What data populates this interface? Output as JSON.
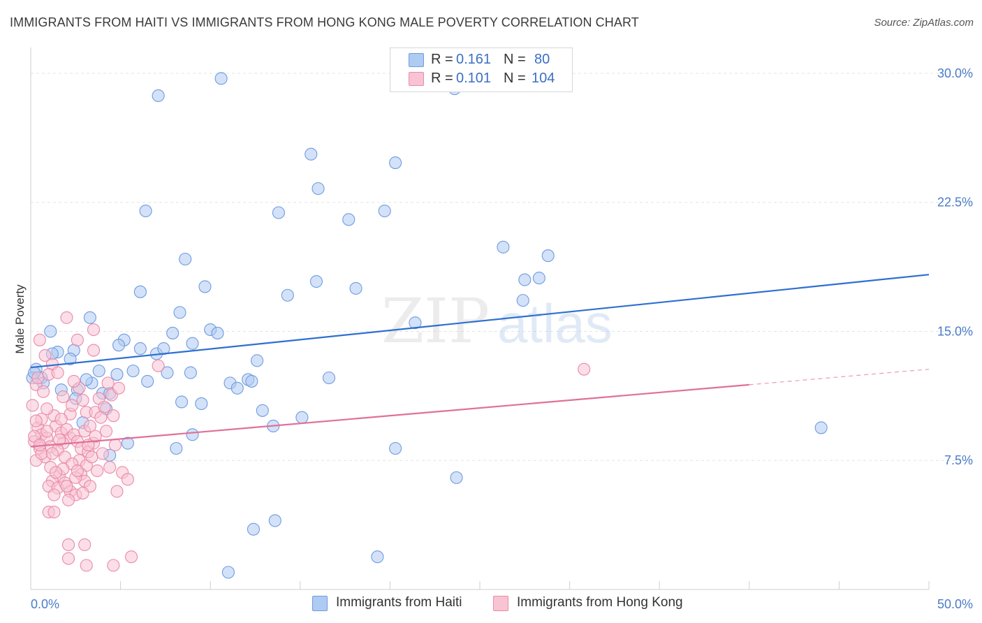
{
  "title": "IMMIGRANTS FROM HAITI VS IMMIGRANTS FROM HONG KONG MALE POVERTY CORRELATION CHART",
  "source": "Source: ZipAtlas.com",
  "watermark": {
    "zip": "ZIP",
    "atlas": "atlas"
  },
  "legend": {
    "r_label": "R =",
    "n_label": "N =",
    "rows": [
      {
        "r": "0.161",
        "n": "80",
        "fill": "#aecbf2",
        "stroke": "#6f9be0"
      },
      {
        "r": "0.101",
        "n": "104",
        "fill": "#f8c3d3",
        "stroke": "#ea8aa8"
      }
    ]
  },
  "bottom_legend": [
    "Immigrants from Haiti",
    "Immigrants from Hong Kong"
  ],
  "chart_data": {
    "type": "scatter",
    "title": "IMMIGRANTS FROM HAITI VS IMMIGRANTS FROM HONG KONG MALE POVERTY CORRELATION CHART",
    "xlabel": "",
    "ylabel": "Male Poverty",
    "xlim": [
      0,
      50
    ],
    "ylim": [
      0,
      31.5
    ],
    "x_tick_labels": [
      "0.0%",
      "50.0%"
    ],
    "y_ticks": [
      7.5,
      15.0,
      22.5,
      30.0
    ],
    "y_tick_labels": [
      "7.5%",
      "15.0%",
      "22.5%",
      "30.0%"
    ],
    "grid": true,
    "series": [
      {
        "name": "Immigrants from Haiti",
        "color": "#6f9be0",
        "fill": "#aecbf2",
        "trend": {
          "x0": 0,
          "y0": 12.9,
          "x1": 50,
          "y1": 18.3,
          "color": "#2f6fd0"
        },
        "points": [
          [
            10.6,
            29.7
          ],
          [
            7.1,
            28.7
          ],
          [
            20.3,
            24.8
          ],
          [
            15.6,
            25.3
          ],
          [
            23.6,
            29.1
          ],
          [
            16.0,
            23.3
          ],
          [
            6.4,
            22.0
          ],
          [
            13.8,
            21.9
          ],
          [
            17.7,
            21.5
          ],
          [
            19.7,
            22.0
          ],
          [
            8.6,
            19.2
          ],
          [
            26.3,
            19.9
          ],
          [
            28.8,
            19.4
          ],
          [
            9.7,
            17.6
          ],
          [
            6.1,
            17.3
          ],
          [
            14.3,
            17.1
          ],
          [
            15.9,
            17.9
          ],
          [
            18.1,
            17.5
          ],
          [
            27.5,
            18.0
          ],
          [
            28.3,
            18.1
          ],
          [
            27.4,
            16.8
          ],
          [
            8.3,
            16.1
          ],
          [
            21.4,
            15.5
          ],
          [
            3.3,
            15.8
          ],
          [
            10.0,
            15.1
          ],
          [
            10.4,
            14.9
          ],
          [
            1.1,
            15.0
          ],
          [
            5.2,
            14.5
          ],
          [
            7.9,
            14.9
          ],
          [
            9.0,
            14.3
          ],
          [
            4.9,
            14.2
          ],
          [
            1.5,
            13.8
          ],
          [
            2.4,
            13.9
          ],
          [
            6.1,
            14.0
          ],
          [
            7.0,
            13.7
          ],
          [
            7.4,
            14.0
          ],
          [
            2.2,
            13.4
          ],
          [
            12.6,
            13.3
          ],
          [
            0.3,
            12.8
          ],
          [
            3.8,
            12.7
          ],
          [
            4.8,
            12.5
          ],
          [
            5.7,
            12.7
          ],
          [
            7.6,
            12.6
          ],
          [
            8.9,
            12.6
          ],
          [
            0.6,
            12.3
          ],
          [
            6.5,
            12.1
          ],
          [
            11.1,
            12.0
          ],
          [
            12.1,
            12.2
          ],
          [
            12.3,
            12.1
          ],
          [
            16.6,
            12.3
          ],
          [
            0.7,
            12.0
          ],
          [
            0.1,
            12.3
          ],
          [
            3.4,
            12.0
          ],
          [
            11.5,
            11.7
          ],
          [
            1.7,
            11.6
          ],
          [
            2.6,
            11.6
          ],
          [
            4.0,
            11.4
          ],
          [
            2.5,
            11.1
          ],
          [
            4.4,
            11.4
          ],
          [
            9.5,
            10.8
          ],
          [
            12.9,
            10.4
          ],
          [
            4.2,
            10.5
          ],
          [
            15.1,
            10.0
          ],
          [
            2.9,
            9.7
          ],
          [
            13.5,
            9.5
          ],
          [
            44.0,
            9.4
          ],
          [
            9.0,
            9.0
          ],
          [
            5.4,
            8.5
          ],
          [
            8.1,
            8.2
          ],
          [
            20.3,
            8.2
          ],
          [
            4.4,
            7.8
          ],
          [
            23.7,
            6.5
          ],
          [
            13.6,
            4.0
          ],
          [
            12.4,
            3.5
          ],
          [
            19.3,
            1.9
          ],
          [
            11.0,
            1.0
          ],
          [
            0.2,
            12.6
          ],
          [
            1.2,
            13.7
          ],
          [
            3.1,
            12.2
          ],
          [
            8.4,
            10.9
          ]
        ]
      },
      {
        "name": "Immigrants from Hong Kong",
        "color": "#ea8aa8",
        "fill": "#f8c3d3",
        "trend": {
          "x0": 0,
          "y0": 8.3,
          "x1": 40,
          "y1": 11.9,
          "x_dash_end": 50,
          "y_dash_end": 12.8,
          "color": "#e0709a"
        },
        "points": [
          [
            0.5,
            14.5
          ],
          [
            1.2,
            13.1
          ],
          [
            1.0,
            12.5
          ],
          [
            0.3,
            11.9
          ],
          [
            0.1,
            10.7
          ],
          [
            0.4,
            9.4
          ],
          [
            0.6,
            9.0
          ],
          [
            0.9,
            8.8
          ],
          [
            1.1,
            8.3
          ],
          [
            0.2,
            8.6
          ],
          [
            0.5,
            8.2
          ],
          [
            0.8,
            7.7
          ],
          [
            0.3,
            7.5
          ],
          [
            1.4,
            9.5
          ],
          [
            1.7,
            9.1
          ],
          [
            2.0,
            9.3
          ],
          [
            2.2,
            8.8
          ],
          [
            1.8,
            8.5
          ],
          [
            1.5,
            8.1
          ],
          [
            1.9,
            7.7
          ],
          [
            2.4,
            9.0
          ],
          [
            2.6,
            8.6
          ],
          [
            2.8,
            8.2
          ],
          [
            3.0,
            9.2
          ],
          [
            3.2,
            8.0
          ],
          [
            2.7,
            7.5
          ],
          [
            3.1,
            7.2
          ],
          [
            3.5,
            8.5
          ],
          [
            3.4,
            7.7
          ],
          [
            2.3,
            7.3
          ],
          [
            1.6,
            6.6
          ],
          [
            1.2,
            6.3
          ],
          [
            1.0,
            6.0
          ],
          [
            1.5,
            5.9
          ],
          [
            1.9,
            6.2
          ],
          [
            2.2,
            5.7
          ],
          [
            2.5,
            5.5
          ],
          [
            2.1,
            5.2
          ],
          [
            1.3,
            5.5
          ],
          [
            2.8,
            6.7
          ],
          [
            3.0,
            6.3
          ],
          [
            3.3,
            6.0
          ],
          [
            1.8,
            11.2
          ],
          [
            2.2,
            10.2
          ],
          [
            2.7,
            11.7
          ],
          [
            3.1,
            10.3
          ],
          [
            3.6,
            10.3
          ],
          [
            3.8,
            11.1
          ],
          [
            4.1,
            10.6
          ],
          [
            4.5,
            11.3
          ],
          [
            4.9,
            11.7
          ],
          [
            2.0,
            15.8
          ],
          [
            2.6,
            14.5
          ],
          [
            3.5,
            13.9
          ],
          [
            3.5,
            15.1
          ],
          [
            7.1,
            13.0
          ],
          [
            4.2,
            9.2
          ],
          [
            4.7,
            8.4
          ],
          [
            4.4,
            7.1
          ],
          [
            5.1,
            6.8
          ],
          [
            5.4,
            6.4
          ],
          [
            4.8,
            5.7
          ],
          [
            1.0,
            4.5
          ],
          [
            1.3,
            4.5
          ],
          [
            2.1,
            2.6
          ],
          [
            3.0,
            2.6
          ],
          [
            2.1,
            1.8
          ],
          [
            3.1,
            1.4
          ],
          [
            4.6,
            1.4
          ],
          [
            5.6,
            1.9
          ],
          [
            30.8,
            12.8
          ],
          [
            0.4,
            12.3
          ],
          [
            0.7,
            11.5
          ],
          [
            0.6,
            9.9
          ],
          [
            1.3,
            10.1
          ],
          [
            0.9,
            9.2
          ],
          [
            1.6,
            8.7
          ],
          [
            0.2,
            8.9
          ],
          [
            2.9,
            11.0
          ],
          [
            4.3,
            12.0
          ],
          [
            0.8,
            13.6
          ],
          [
            1.5,
            12.6
          ],
          [
            2.4,
            12.1
          ],
          [
            3.9,
            10.0
          ],
          [
            0.6,
            7.9
          ],
          [
            1.1,
            7.1
          ],
          [
            1.8,
            7.0
          ],
          [
            2.5,
            6.5
          ],
          [
            3.7,
            6.9
          ],
          [
            4.0,
            7.9
          ],
          [
            2.9,
            5.6
          ],
          [
            1.4,
            6.8
          ],
          [
            0.3,
            9.8
          ],
          [
            0.9,
            10.5
          ],
          [
            1.7,
            9.9
          ],
          [
            2.3,
            10.7
          ],
          [
            3.3,
            9.5
          ],
          [
            3.6,
            8.9
          ],
          [
            4.6,
            10.1
          ],
          [
            0.5,
            8.4
          ],
          [
            1.2,
            7.9
          ],
          [
            2.0,
            6.0
          ],
          [
            2.6,
            6.9
          ],
          [
            3.2,
            8.4
          ]
        ]
      }
    ]
  }
}
